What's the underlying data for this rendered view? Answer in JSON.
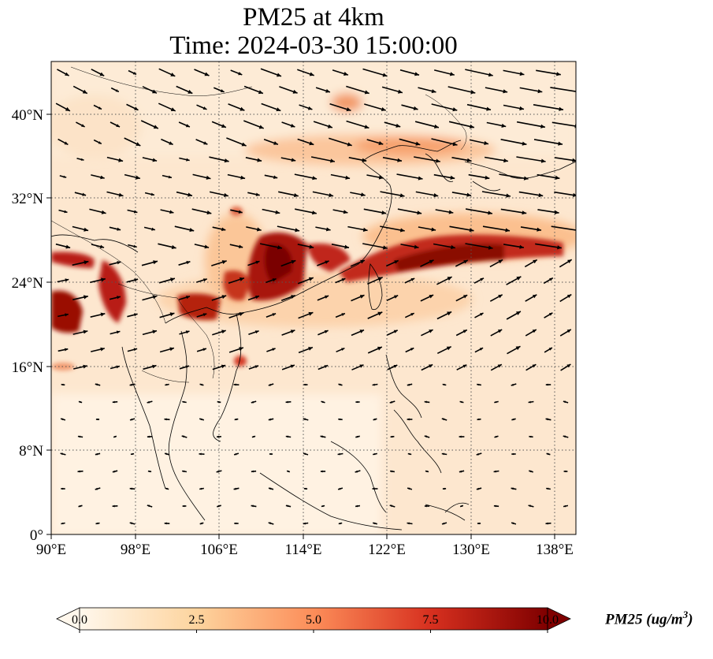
{
  "title": {
    "line1": "PM25 at 4km",
    "line2": "Time: 2024-03-30 15:00:00"
  },
  "map": {
    "lon_range": [
      90,
      140
    ],
    "lat_range": [
      0,
      45
    ],
    "projection": "PlateCarree",
    "gridlines": "dotted",
    "x_ticks": [
      "90°E",
      "98°E",
      "106°E",
      "114°E",
      "122°E",
      "130°E",
      "138°E"
    ],
    "x_tick_values": [
      90,
      98,
      106,
      114,
      122,
      130,
      138
    ],
    "y_ticks": [
      "0°",
      "8°N",
      "16°N",
      "24°N",
      "32°N",
      "40°N"
    ],
    "y_tick_values": [
      0,
      8,
      16,
      24,
      32,
      40
    ],
    "field": "PM25 concentration (shaded)",
    "vectors": "wind arrows (black)"
  },
  "colorbar": {
    "label": "PM25 (ug/m",
    "label_sup": "3",
    "label_close": ")",
    "ticks": [
      "0.0",
      "2.5",
      "5.0",
      "7.5",
      "10.0"
    ],
    "tick_values": [
      0,
      2.5,
      5,
      7.5,
      10
    ],
    "range": [
      0,
      10
    ],
    "colormap": "OrRd",
    "colors": [
      "#fff7ec",
      "#fdd49e",
      "#fc8d59",
      "#d7301f",
      "#7f0000"
    ],
    "extend": "both"
  }
}
